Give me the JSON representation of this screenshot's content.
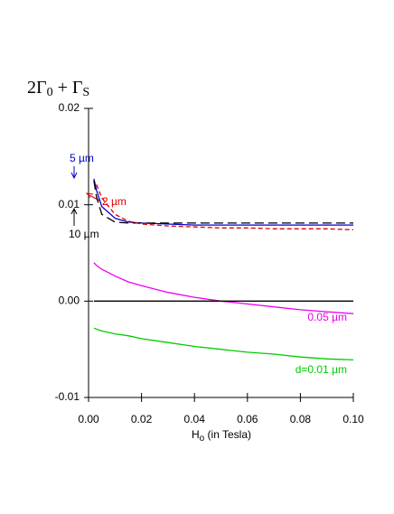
{
  "chart_data": {
    "type": "line",
    "title": [
      "2Γ",
      "0",
      " + Γ",
      "S"
    ],
    "x_label": [
      "H",
      "o",
      " (in Tesla)"
    ],
    "x": [
      0.002,
      0.003,
      0.005,
      0.01,
      0.015,
      0.02,
      0.03,
      0.04,
      0.05,
      0.06,
      0.07,
      0.08,
      0.09,
      0.1
    ],
    "series": [
      {
        "name": "5 µm",
        "color": "#0000cc",
        "dashed": false,
        "values": [
          0.0127,
          0.0115,
          0.0098,
          0.0086,
          0.0082,
          0.0081,
          0.008,
          0.0079,
          0.0079,
          0.0079,
          0.0079,
          0.0079,
          0.0079,
          0.0079
        ]
      },
      {
        "name": "10 µm",
        "color": "#000000",
        "dashed": true,
        "values": [
          0.0125,
          0.0108,
          0.009,
          0.0082,
          0.0081,
          0.0081,
          0.0081,
          0.0081,
          0.0081,
          0.0081,
          0.0081,
          0.0081,
          0.0081,
          0.0081
        ]
      },
      {
        "name": "2 µm",
        "color": "#dd0000",
        "dashed": true,
        "values": [
          null,
          0.0121,
          0.0107,
          0.009,
          0.0083,
          0.008,
          0.0078,
          0.0077,
          0.0076,
          0.0076,
          0.0075,
          0.0075,
          0.0075,
          0.0074
        ]
      },
      {
        "name": "0.05 µm",
        "color": "#ee00ee",
        "dashed": false,
        "values": [
          0.004,
          0.0037,
          0.0033,
          0.0026,
          0.002,
          0.0016,
          0.0009,
          0.0004,
          0,
          -0.0003,
          -0.0006,
          -0.0009,
          -0.0011,
          -0.0013
        ]
      },
      {
        "name": "d=0.01 µm",
        "color": "#00cc00",
        "dashed": false,
        "values": [
          -0.0028,
          -0.0029,
          -0.0031,
          -0.0034,
          -0.0036,
          -0.0039,
          -0.0043,
          -0.0047,
          -0.005,
          -0.0053,
          -0.0055,
          -0.0058,
          -0.006,
          -0.0061
        ]
      },
      {
        "color": "#000000",
        "dashed": false,
        "values": [
          0,
          0,
          0,
          0,
          0,
          0,
          0,
          0,
          0,
          0,
          0,
          0,
          0,
          0
        ]
      }
    ],
    "xlim": [
      0,
      0.1
    ],
    "ylim": [
      -0.01,
      0.02
    ],
    "xticks": [
      {
        "value": 0,
        "label": "0.00"
      },
      0.02,
      0.04,
      0.06,
      0.08,
      {
        "value": 0.1,
        "label": "0.10"
      }
    ],
    "yticks": [
      -0.01,
      {
        "value": 0,
        "label": "0.00"
      },
      0.01,
      0.02
    ]
  }
}
